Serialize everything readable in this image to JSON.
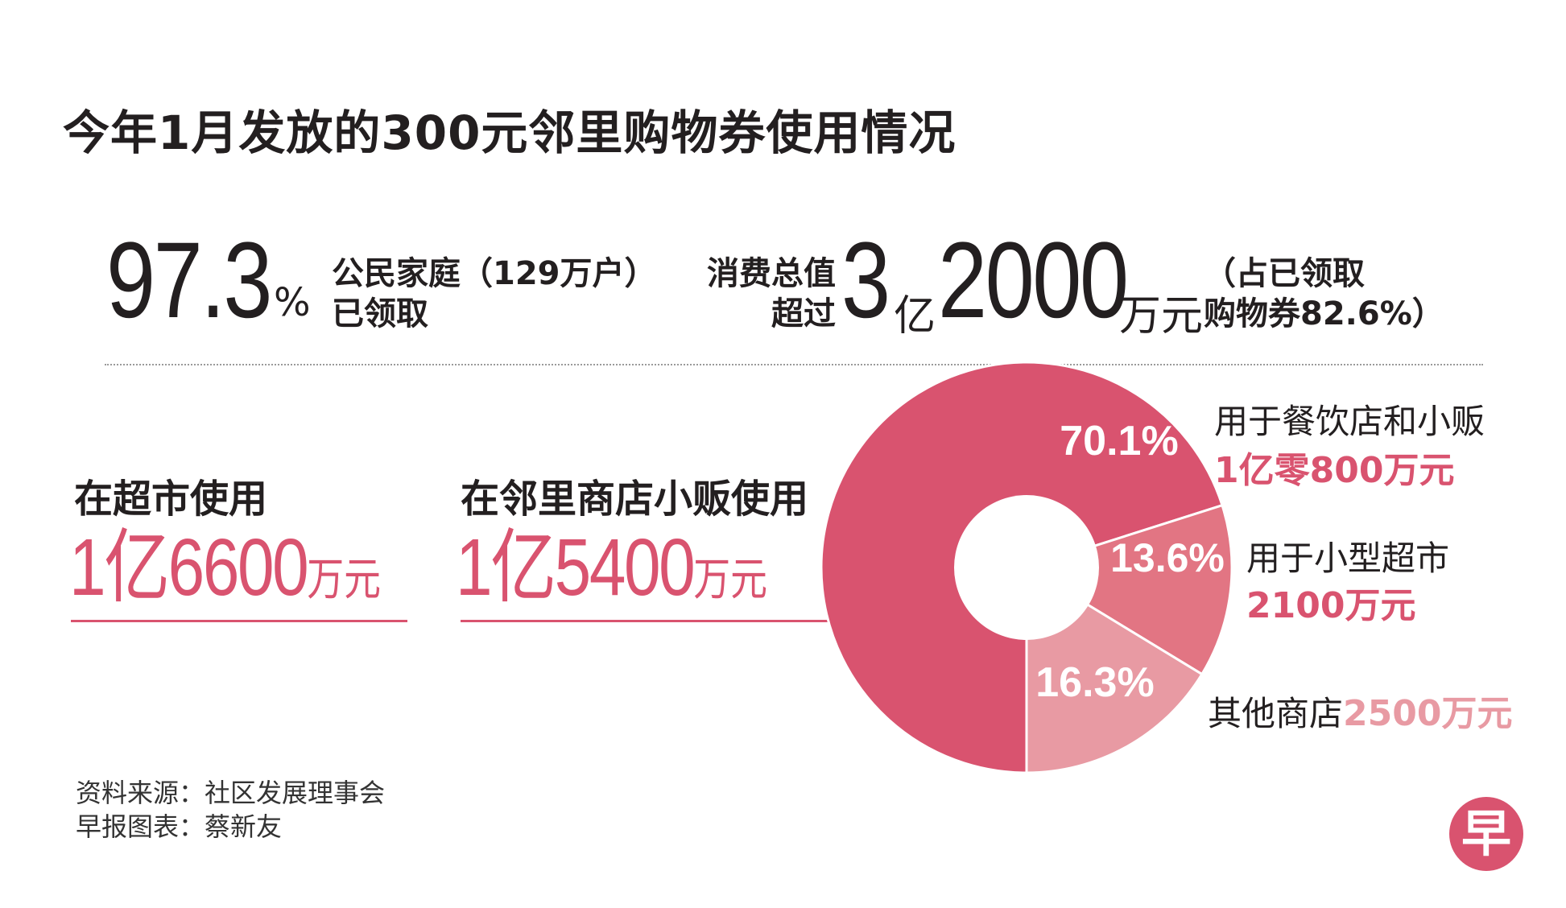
{
  "title": "今年1月发放的300元邻里购物券使用情况",
  "stats": {
    "household_pct": "97.3",
    "household_pct_sign": "%",
    "household_line1": "公民家庭（129万户）",
    "household_line2": "已领取",
    "value_label_line1": "消费总值",
    "value_label_line2": "超过",
    "value_big1": "3",
    "value_yi": "亿",
    "value_big2": "2000",
    "value_unit": "万元",
    "value_note_line1": "（占已领取",
    "value_note_line2": "购物券82.6%）"
  },
  "usage": {
    "supermarket_title": "在超市使用",
    "supermarket_value": "1亿6600",
    "supermarket_unit": "万元",
    "neighbourhood_title": "在邻里商店小贩使用",
    "neighbourhood_value": "1亿5400",
    "neighbourhood_unit": "万元"
  },
  "breakdown": {
    "c1_name": "用于餐饮店和小贩",
    "c1_value": "1亿零800万元",
    "c2_name": "用于小型超市",
    "c2_value": "2100万元",
    "c3_name": "其他商店",
    "c3_value": "2500万元"
  },
  "source": {
    "line1": "资料来源：社区发展理事会",
    "line2": "早报图表：蔡新友"
  },
  "logo_char": "早",
  "colors": {
    "accent": "#d9536f",
    "slice_food": "#d9536f",
    "slice_minimart": "#e27583",
    "slice_other": "#e89aa3",
    "text": "#231f20"
  },
  "chart_data": {
    "type": "pie",
    "categories": [
      "用于餐饮店和小贩",
      "用于小型超市",
      "其他商店"
    ],
    "values": [
      70.1,
      13.6,
      16.3
    ],
    "labels": [
      "70.1%",
      "13.6%",
      "16.3%"
    ]
  }
}
